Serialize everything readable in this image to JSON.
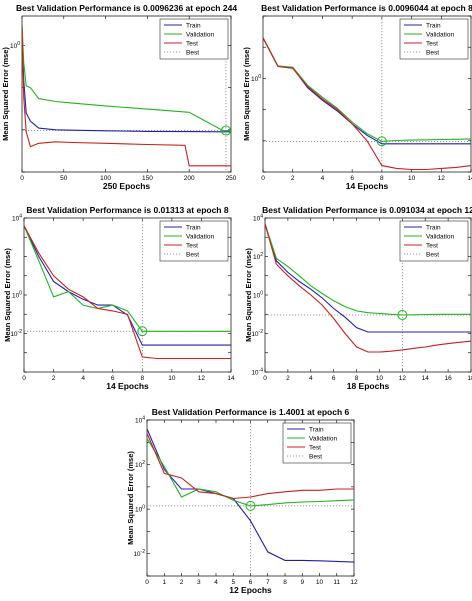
{
  "figure": {
    "series_colors": {
      "Train": "#1f1fb4",
      "Validation": "#21b521",
      "Test": "#cc1f1f",
      "Best": "#777777"
    }
  },
  "chart_data": [
    {
      "type": "line",
      "title": "Best Validation Performance is 0.0096236 at epoch 244",
      "xlabel": "250 Epochs",
      "ylabel": "Mean Squared Error  (mse)",
      "xlim": [
        0,
        250
      ],
      "ylim": [
        0.001,
        5
      ],
      "yscale": "log",
      "xticks": [
        0,
        50,
        100,
        150,
        200,
        250
      ],
      "yticks": [
        {
          "value": 1,
          "label": "10^0"
        }
      ],
      "best": {
        "epoch": 244,
        "value": 0.0096236
      },
      "series": [
        {
          "name": "Train",
          "x": [
            0,
            2,
            5,
            10,
            20,
            40,
            60,
            100,
            150,
            200,
            240,
            250
          ],
          "y": [
            3,
            0.15,
            0.025,
            0.016,
            0.011,
            0.01,
            0.0098,
            0.0095,
            0.0092,
            0.0091,
            0.009,
            0.009
          ]
        },
        {
          "name": "Validation",
          "x": [
            0,
            2,
            5,
            10,
            20,
            40,
            60,
            100,
            150,
            200,
            240,
            250
          ],
          "y": [
            3,
            0.4,
            0.11,
            0.1,
            0.055,
            0.047,
            0.043,
            0.037,
            0.031,
            0.026,
            0.0097,
            0.0096
          ]
        },
        {
          "name": "Test",
          "x": [
            0,
            2,
            5,
            10,
            20,
            40,
            60,
            100,
            150,
            195,
            200,
            250
          ],
          "y": [
            3,
            0.06,
            0.009,
            0.004,
            0.0048,
            0.0052,
            0.005,
            0.0048,
            0.0045,
            0.0043,
            0.0014,
            0.0014
          ]
        }
      ]
    },
    {
      "type": "line",
      "title": "Best Validation Performance is 0.0096044 at epoch 8",
      "xlabel": "14 Epochs",
      "ylabel": "Mean Squared Error  (mse)",
      "xlim": [
        0,
        14
      ],
      "ylim": [
        0.001,
        100
      ],
      "yscale": "log",
      "xticks": [
        0,
        2,
        4,
        6,
        8,
        10,
        12,
        14
      ],
      "yticks": [
        {
          "value": 1,
          "label": "10^0"
        }
      ],
      "best": {
        "epoch": 8,
        "value": 0.0096044
      },
      "series": [
        {
          "name": "Train",
          "x": [
            0,
            1,
            2,
            3,
            4,
            5,
            6,
            7,
            8,
            9,
            10,
            11,
            12,
            13,
            14
          ],
          "y": [
            20,
            2.5,
            2.2,
            0.5,
            0.2,
            0.09,
            0.035,
            0.015,
            0.008,
            0.008,
            0.008,
            0.008,
            0.008,
            0.008,
            0.008
          ]
        },
        {
          "name": "Validation",
          "x": [
            0,
            1,
            2,
            3,
            4,
            5,
            6,
            7,
            8,
            9,
            10,
            11,
            12,
            13,
            14
          ],
          "y": [
            20,
            2.5,
            2.3,
            0.6,
            0.25,
            0.11,
            0.04,
            0.017,
            0.0096,
            0.0102,
            0.0105,
            0.0108,
            0.011,
            0.0112,
            0.0115
          ]
        },
        {
          "name": "Test",
          "x": [
            0,
            1,
            2,
            3,
            4,
            5,
            6,
            7,
            8,
            9,
            10,
            11,
            12,
            13,
            14
          ],
          "y": [
            20,
            2.4,
            2.1,
            0.55,
            0.22,
            0.1,
            0.035,
            0.01,
            0.0016,
            0.0013,
            0.0012,
            0.0012,
            0.0013,
            0.0014,
            0.0016
          ]
        }
      ]
    },
    {
      "type": "line",
      "title": "Best Validation Performance is 0.01313 at epoch 8",
      "xlabel": "14 Epochs",
      "ylabel": "Mean Squared Error  (mse)",
      "xlim": [
        0,
        14
      ],
      "ylim": [
        0.0001,
        10000
      ],
      "yscale": "log",
      "xticks": [
        0,
        2,
        4,
        6,
        8,
        10,
        12,
        14
      ],
      "yticks": [
        {
          "value": 10000,
          "label": "10^4"
        },
        {
          "value": 1,
          "label": "10^0"
        },
        {
          "value": 0.01,
          "label": "10^-2"
        }
      ],
      "best": {
        "epoch": 8,
        "value": 0.01313
      },
      "series": [
        {
          "name": "Train",
          "x": [
            0,
            1,
            2,
            3,
            4,
            5,
            6,
            7,
            8,
            9,
            10,
            11,
            12,
            13,
            14
          ],
          "y": [
            4000,
            100,
            5,
            1.5,
            0.6,
            0.3,
            0.3,
            0.09,
            0.0025,
            0.0025,
            0.0025,
            0.0025,
            0.0025,
            0.0025,
            0.0025
          ]
        },
        {
          "name": "Validation",
          "x": [
            0,
            1,
            2,
            3,
            4,
            5,
            6,
            7,
            8,
            9,
            10,
            11,
            12,
            13,
            14
          ],
          "y": [
            4000,
            60,
            0.8,
            1.5,
            0.3,
            0.2,
            0.3,
            0.15,
            0.013,
            0.013,
            0.013,
            0.013,
            0.013,
            0.013,
            0.013
          ]
        },
        {
          "name": "Test",
          "x": [
            0,
            1,
            2,
            3,
            4,
            5,
            6,
            7,
            8,
            9,
            10,
            11,
            12,
            13,
            14
          ],
          "y": [
            4000,
            150,
            10,
            2,
            0.8,
            0.2,
            0.15,
            0.1,
            0.0006,
            0.0005,
            0.0005,
            0.0005,
            0.0005,
            0.0005,
            0.0005
          ]
        }
      ]
    },
    {
      "type": "line",
      "title": "Best Validation Performance is 0.091034 at epoch 12",
      "xlabel": "18 Epochs",
      "ylabel": "Mean Squared Error  (mse)",
      "xlim": [
        0,
        18
      ],
      "ylim": [
        0.0001,
        10000
      ],
      "yscale": "log",
      "xticks": [
        0,
        2,
        4,
        6,
        8,
        10,
        12,
        14,
        16,
        18
      ],
      "yticks": [
        {
          "value": 10000,
          "label": "10^4"
        },
        {
          "value": 100,
          "label": "10^2"
        },
        {
          "value": 1,
          "label": "10^0"
        },
        {
          "value": 0.01,
          "label": "10^-2"
        },
        {
          "value": 0.0001,
          "label": "10^-4"
        }
      ],
      "best": {
        "epoch": 12,
        "value": 0.091034
      },
      "series": [
        {
          "name": "Train",
          "x": [
            0,
            1,
            2,
            3,
            4,
            5,
            6,
            7,
            8,
            9,
            10,
            11,
            12,
            13,
            14,
            15,
            16,
            17,
            18
          ],
          "y": [
            5000,
            60,
            15,
            5,
            2,
            0.7,
            0.2,
            0.07,
            0.02,
            0.012,
            0.012,
            0.012,
            0.012,
            0.012,
            0.012,
            0.012,
            0.012,
            0.012,
            0.012
          ]
        },
        {
          "name": "Validation",
          "x": [
            0,
            1,
            2,
            3,
            4,
            5,
            6,
            7,
            8,
            9,
            10,
            11,
            12,
            13,
            14,
            15,
            16,
            17,
            18
          ],
          "y": [
            5000,
            80,
            30,
            10,
            3,
            1.2,
            0.5,
            0.25,
            0.15,
            0.12,
            0.11,
            0.1,
            0.091,
            0.094,
            0.097,
            0.1,
            0.1,
            0.1,
            0.1
          ]
        },
        {
          "name": "Test",
          "x": [
            0,
            1,
            2,
            3,
            4,
            5,
            6,
            7,
            8,
            9,
            10,
            11,
            12,
            13,
            14,
            15,
            16,
            17,
            18
          ],
          "y": [
            5000,
            40,
            10,
            3,
            1,
            0.3,
            0.06,
            0.01,
            0.002,
            0.0011,
            0.0011,
            0.0012,
            0.0014,
            0.0017,
            0.002,
            0.0025,
            0.003,
            0.0035,
            0.004
          ]
        }
      ]
    },
    {
      "type": "line",
      "title": "Best Validation Performance is 1.4001 at epoch 6",
      "xlabel": "12 Epochs",
      "ylabel": "Mean Squared Error  (mse)",
      "xlim": [
        0,
        12
      ],
      "ylim": [
        0.001,
        10000
      ],
      "yscale": "log",
      "xticks": [
        0,
        1,
        2,
        3,
        4,
        5,
        6,
        7,
        8,
        9,
        10,
        11,
        12
      ],
      "yticks": [
        {
          "value": 10000,
          "label": "10^4"
        },
        {
          "value": 100,
          "label": "10^2"
        },
        {
          "value": 1,
          "label": "10^0"
        },
        {
          "value": 0.01,
          "label": "10^-2"
        }
      ],
      "best": {
        "epoch": 6,
        "value": 1.4001
      },
      "series": [
        {
          "name": "Train",
          "x": [
            0,
            1,
            2,
            3,
            4,
            5,
            6,
            7,
            8,
            9,
            10,
            11,
            12
          ],
          "y": [
            4000,
            60,
            8,
            8,
            5,
            3,
            0.3,
            0.012,
            0.005,
            0.005,
            0.0048,
            0.0045,
            0.0042
          ]
        },
        {
          "name": "Validation",
          "x": [
            0,
            1,
            2,
            3,
            4,
            5,
            6,
            7,
            8,
            9,
            10,
            11,
            12
          ],
          "y": [
            1500,
            80,
            3.5,
            8,
            6,
            2.5,
            1.4,
            1.6,
            1.9,
            2.1,
            2.2,
            2.4,
            2.6
          ]
        },
        {
          "name": "Test",
          "x": [
            0,
            1,
            2,
            3,
            4,
            5,
            6,
            7,
            8,
            9,
            10,
            11,
            12
          ],
          "y": [
            2500,
            40,
            25,
            6,
            5,
            3,
            3.5,
            5,
            6,
            7,
            7,
            8,
            8
          ]
        }
      ]
    }
  ]
}
